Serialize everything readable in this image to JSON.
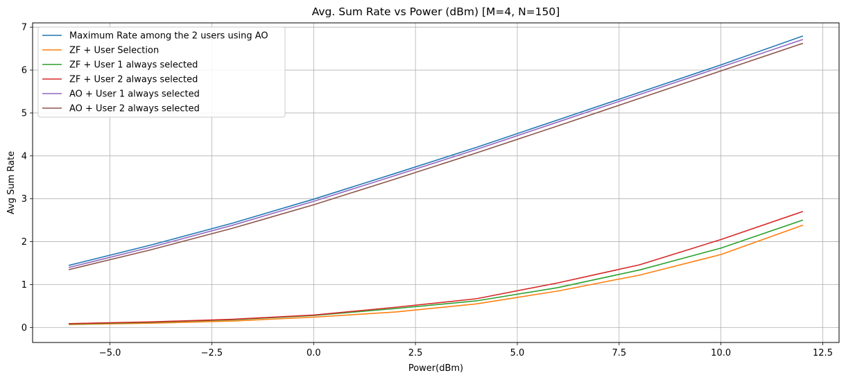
{
  "chart_data": {
    "type": "line",
    "title": "Avg. Sum Rate vs Power (dBm) [M=4, N=150]",
    "xlabel": "Power(dBm)",
    "ylabel": "Avg Sum Rate",
    "xlim": [
      -6.9,
      12.9
    ],
    "ylim": [
      -0.35,
      7.1
    ],
    "xticks": [
      -5.0,
      -2.5,
      0.0,
      2.5,
      5.0,
      7.5,
      10.0,
      12.5
    ],
    "xtick_labels": [
      "−5.0",
      "−2.5",
      "0.0",
      "2.5",
      "5.0",
      "7.5",
      "10.0",
      "12.5"
    ],
    "yticks": [
      0,
      1,
      2,
      3,
      4,
      5,
      6,
      7
    ],
    "ytick_labels": [
      "0",
      "1",
      "2",
      "3",
      "4",
      "5",
      "6",
      "7"
    ],
    "grid": true,
    "legend_position": "top-left",
    "x": [
      -6,
      -4,
      -2,
      0,
      2,
      4,
      6,
      8,
      10,
      12
    ],
    "series": [
      {
        "name": "Maximum Rate among the 2 users using AO",
        "color": "#1f77b4",
        "values": [
          1.45,
          1.92,
          2.43,
          2.99,
          3.59,
          4.2,
          4.84,
          5.48,
          6.12,
          6.79
        ]
      },
      {
        "name": "ZF + User Selection",
        "color": "#ff7f0e",
        "values": [
          0.07,
          0.1,
          0.15,
          0.24,
          0.36,
          0.55,
          0.85,
          1.22,
          1.7,
          2.38
        ]
      },
      {
        "name": "ZF + User 1 always selected",
        "color": "#2ca02c",
        "values": [
          0.08,
          0.12,
          0.18,
          0.28,
          0.44,
          0.62,
          0.93,
          1.34,
          1.85,
          2.5
        ]
      },
      {
        "name": "ZF + User 2 always selected",
        "color": "#d62728",
        "values": [
          0.09,
          0.13,
          0.19,
          0.29,
          0.47,
          0.67,
          1.04,
          1.46,
          2.05,
          2.7
        ]
      },
      {
        "name": "AO + User 1 always selected",
        "color": "#9467bd",
        "values": [
          1.4,
          1.87,
          2.38,
          2.94,
          3.54,
          4.15,
          4.79,
          5.43,
          6.07,
          6.71
        ]
      },
      {
        "name": "AO + User 2 always selected",
        "color": "#8c564b",
        "values": [
          1.35,
          1.81,
          2.31,
          2.86,
          3.46,
          4.07,
          4.7,
          5.34,
          5.98,
          6.62
        ]
      }
    ]
  }
}
